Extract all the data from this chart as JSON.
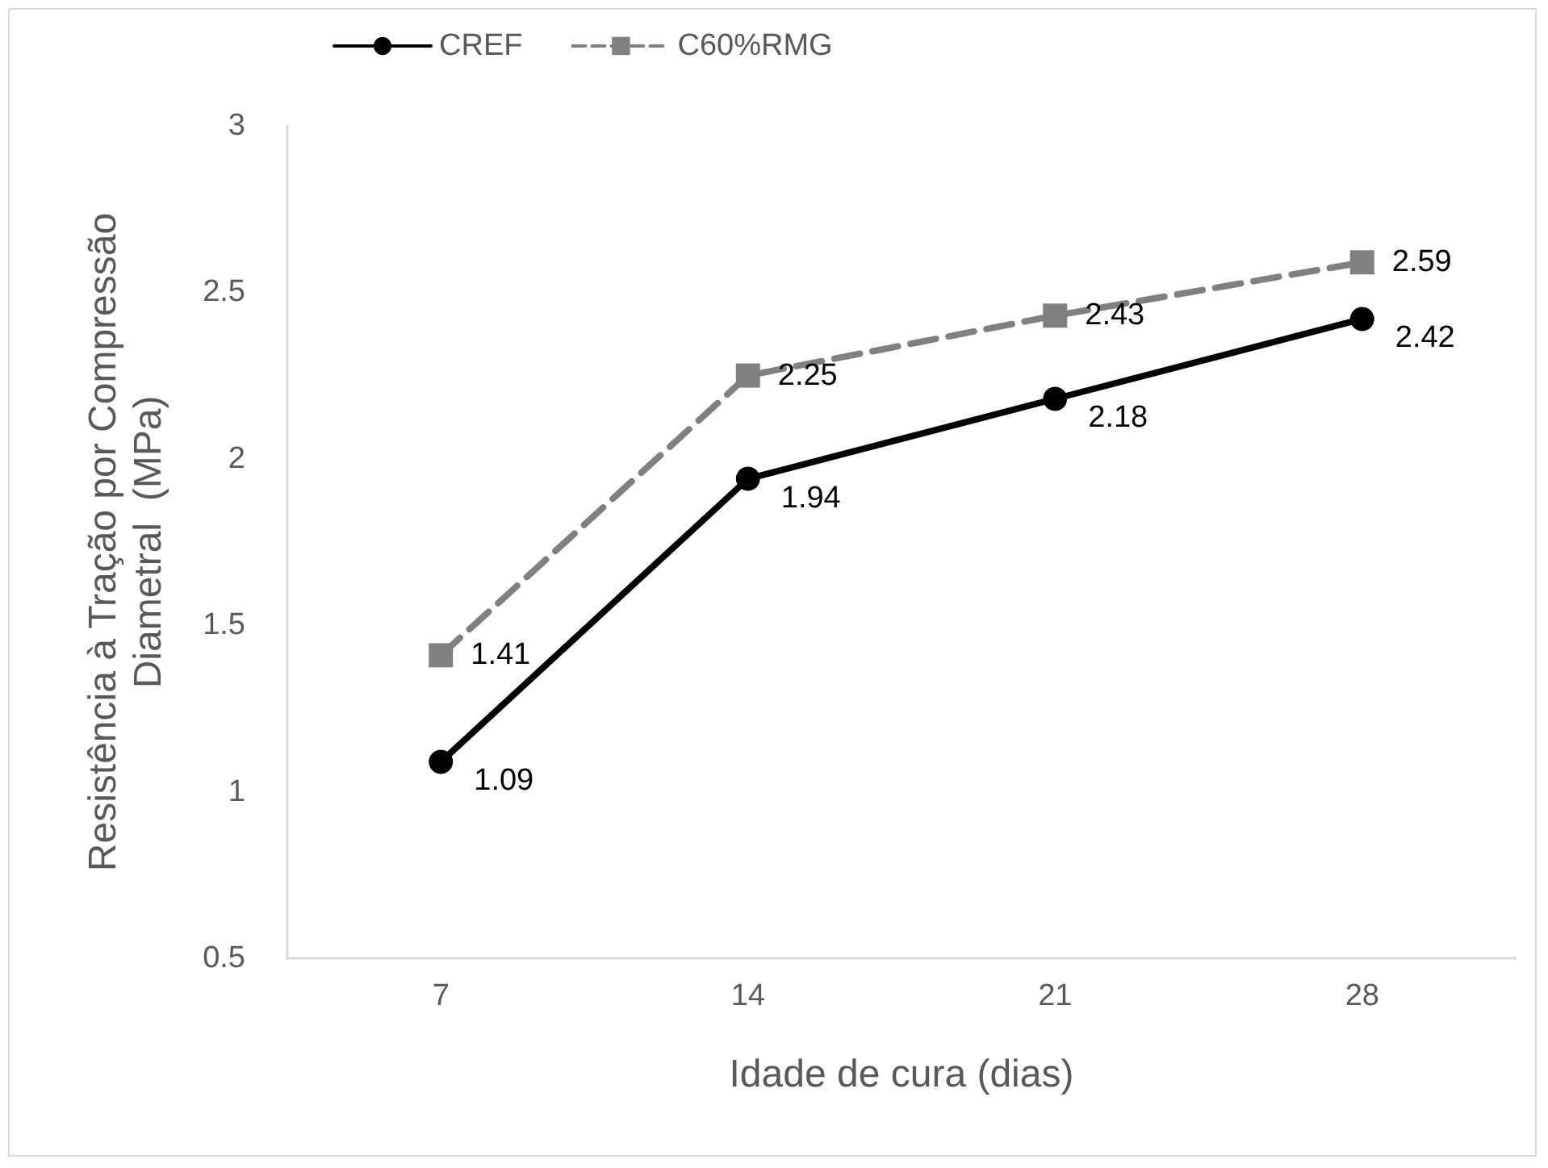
{
  "chart_data": {
    "type": "line",
    "xlabel": "Idade de cura (dias)",
    "ylabel": "Resistência à Tração por Compressão\nDiametral  (MPa)",
    "categories": [
      "7",
      "14",
      "21",
      "28"
    ],
    "series": [
      {
        "name": "CREF",
        "color": "#000000",
        "marker": "circle",
        "line_style": "solid",
        "values": [
          1.09,
          1.94,
          2.18,
          2.42
        ]
      },
      {
        "name": "C60%RMG",
        "color": "#808080",
        "marker": "square",
        "line_style": "dashed",
        "values": [
          1.41,
          2.25,
          2.43,
          2.59
        ]
      }
    ],
    "ylim": [
      0.5,
      3
    ],
    "yticks": [
      0.5,
      1,
      1.5,
      2,
      2.5,
      3
    ],
    "grid": false,
    "legend": "top left",
    "data_labels": true
  }
}
